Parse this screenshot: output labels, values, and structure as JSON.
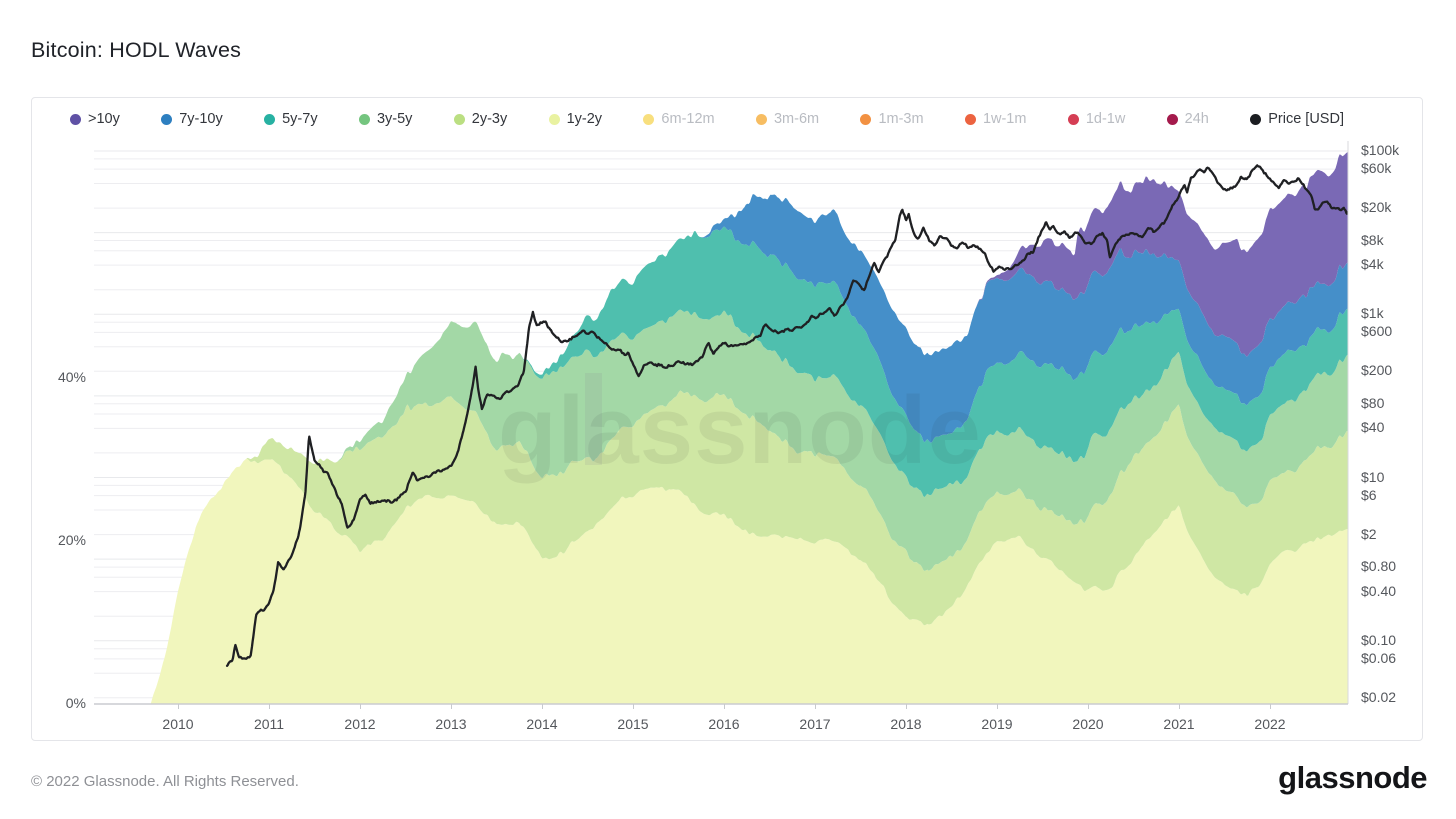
{
  "title": "Bitcoin: HODL Waves",
  "footer": {
    "copyright": "© 2022 Glassnode. All Rights Reserved.",
    "logo": "glassnode"
  },
  "watermark": "glassnode",
  "colors": {
    "price_line": "#1f2023",
    "gridline": "#ededf0",
    "axis_line": "#caccd0",
    "plot_right_border": "#d9dadd",
    "active_label": "#33363c",
    "muted_label": "#b9bcc2"
  },
  "legend": [
    {
      "label": ">10y",
      "color": "#5f51a5",
      "muted": false
    },
    {
      "label": "7y-10y",
      "color": "#2d7fc0",
      "muted": false
    },
    {
      "label": "5y-7y",
      "color": "#27b1a2",
      "muted": false
    },
    {
      "label": "3y-5y",
      "color": "#74c57f",
      "muted": false
    },
    {
      "label": "2y-3y",
      "color": "#bbdf82",
      "muted": false
    },
    {
      "label": "1y-2y",
      "color": "#e9f2a1",
      "muted": false
    },
    {
      "label": "6m-12m",
      "color": "#f8df7e",
      "muted": true
    },
    {
      "label": "3m-6m",
      "color": "#f7bd62",
      "muted": true
    },
    {
      "label": "1m-3m",
      "color": "#f29142",
      "muted": true
    },
    {
      "label": "1w-1m",
      "color": "#ec6340",
      "muted": true
    },
    {
      "label": "1d-1w",
      "color": "#d53e54",
      "muted": true
    },
    {
      "label": "24h",
      "color": "#a41a4c",
      "muted": true
    },
    {
      "label": "Price [USD]",
      "color": "#1b1d21",
      "muted": false
    }
  ],
  "chart_data": {
    "type": "area",
    "stacked": true,
    "title": "Bitcoin: HODL Waves",
    "left_axis": {
      "unit": "%",
      "ticks": [
        {
          "label": "0%",
          "value": 0
        },
        {
          "label": "20%",
          "value": 20
        },
        {
          "label": "40%",
          "value": 40
        }
      ]
    },
    "right_axis": {
      "unit": "USD",
      "scale": "log",
      "range": [
        0.02,
        100000
      ],
      "ticks": [
        {
          "label": "$100k",
          "value": 100000
        },
        {
          "label": "$60k",
          "value": 60000
        },
        {
          "label": "$20k",
          "value": 20000
        },
        {
          "label": "$8k",
          "value": 8000
        },
        {
          "label": "$4k",
          "value": 4000
        },
        {
          "label": "$1k",
          "value": 1000
        },
        {
          "label": "$600",
          "value": 600
        },
        {
          "label": "$200",
          "value": 200
        },
        {
          "label": "$80",
          "value": 80
        },
        {
          "label": "$40",
          "value": 40
        },
        {
          "label": "$10",
          "value": 10
        },
        {
          "label": "$6",
          "value": 6
        },
        {
          "label": "$2",
          "value": 2
        },
        {
          "label": "$0.80",
          "value": 0.8
        },
        {
          "label": "$0.40",
          "value": 0.4
        },
        {
          "label": "$0.10",
          "value": 0.1
        },
        {
          "label": "$0.06",
          "value": 0.06
        },
        {
          "label": "$0.02",
          "value": 0.02
        }
      ]
    },
    "x_axis": {
      "years": [
        2010,
        2011,
        2012,
        2013,
        2014,
        2015,
        2016,
        2017,
        2018,
        2019,
        2020,
        2021,
        2022
      ]
    },
    "x": [
      2009.7,
      2009.85,
      2010.0,
      2010.1,
      2010.25,
      2010.5,
      2010.75,
      2011.0,
      2011.25,
      2011.5,
      2011.75,
      2012.0,
      2012.25,
      2012.5,
      2012.75,
      2013.0,
      2013.25,
      2013.5,
      2013.75,
      2014.0,
      2014.25,
      2014.5,
      2014.75,
      2015.0,
      2015.25,
      2015.5,
      2015.75,
      2016.0,
      2016.25,
      2016.5,
      2016.75,
      2017.0,
      2017.25,
      2017.5,
      2017.75,
      2018.0,
      2018.25,
      2018.5,
      2018.75,
      2019.0,
      2019.25,
      2019.5,
      2019.75,
      2019.86,
      2019.88,
      2020.0,
      2020.25,
      2020.5,
      2020.75,
      2021.0,
      2021.25,
      2021.5,
      2021.75,
      2022.0,
      2022.25,
      2022.5,
      2022.75,
      2022.87
    ],
    "series": [
      {
        "name": "1y-2y",
        "color": "#f1f6bd",
        "values": [
          0,
          6,
          14,
          18,
          23,
          27.5,
          30,
          30,
          28,
          24,
          21,
          19,
          20,
          24,
          25.5,
          26,
          25,
          22,
          22,
          18,
          19,
          21,
          24,
          26,
          27,
          26,
          24,
          23,
          21,
          21,
          21,
          20,
          20,
          18,
          14,
          11,
          10,
          12,
          16,
          20,
          21,
          18,
          16,
          15.5,
          15.5,
          14,
          14,
          18,
          21,
          24,
          18,
          14,
          13,
          17,
          19,
          20,
          21,
          21.5
        ]
      },
      {
        "name": "2y-3y",
        "color": "#cfe7a4",
        "values": [
          0,
          0,
          0,
          0,
          0,
          0,
          0,
          2,
          4,
          6,
          9,
          13,
          13,
          12,
          11,
          12,
          11,
          9,
          10,
          10,
          10,
          9,
          8,
          9,
          10,
          12,
          14,
          15,
          14,
          13,
          11,
          10.5,
          10,
          9.5,
          8.5,
          8,
          6.5,
          6,
          6,
          6,
          6,
          6.1,
          7,
          7.5,
          7.5,
          9,
          11,
          12.5,
          12,
          12,
          12,
          12,
          10.5,
          10.3,
          10,
          10.5,
          11.5,
          12
        ]
      },
      {
        "name": "3y-5y",
        "color": "#a3d8a6",
        "values": [
          0,
          0,
          0,
          0,
          0,
          0,
          0,
          0,
          0,
          0,
          0,
          1,
          2,
          4,
          7,
          9,
          11,
          11,
          11,
          12,
          13,
          13,
          12,
          11,
          10,
          10,
          10,
          10,
          10,
          10,
          10,
          9.5,
          10,
          10,
          9.5,
          9,
          9,
          8.5,
          8,
          7.5,
          7.5,
          7.7,
          8,
          8,
          8,
          8.6,
          8,
          7,
          6.5,
          6.3,
          6.3,
          6.4,
          7,
          8.1,
          8.5,
          9,
          9,
          9
        ]
      },
      {
        "name": "5y-7y",
        "color": "#4fbfae",
        "values": [
          0,
          0,
          0,
          0,
          0,
          0,
          0,
          0,
          0,
          0,
          0,
          0,
          0,
          0,
          0,
          0,
          0,
          0,
          0,
          0.5,
          2,
          4,
          6,
          7,
          8,
          9,
          10,
          10.5,
          11,
          11.5,
          11.5,
          11.5,
          11,
          10,
          8.5,
          7.5,
          6.2,
          6.5,
          7.5,
          8.5,
          9.5,
          10.3,
          10.5,
          10.5,
          10.5,
          10.4,
          10,
          9,
          7.5,
          5.6,
          5.5,
          5.5,
          5.8,
          6.2,
          6,
          5.8,
          5.5,
          5.4
        ]
      },
      {
        "name": "7y-10y",
        "color": "#458fc9",
        "values": [
          0,
          0,
          0,
          0,
          0,
          0,
          0,
          0,
          0,
          0,
          0,
          0,
          0,
          0,
          0,
          0,
          0,
          0,
          0,
          0,
          0,
          0,
          0,
          0,
          0,
          0,
          0,
          1,
          5,
          7.5,
          8,
          8,
          8.5,
          9,
          10,
          10.5,
          10.7,
          10.5,
          10.3,
          10.2,
          10.2,
          10.2,
          10,
          10,
          10,
          9.7,
          9.5,
          9,
          8,
          6.3,
          6.2,
          6.2,
          6.1,
          6.1,
          6,
          5.8,
          5.6,
          5.5
        ]
      },
      {
        "name": ">10y",
        "color": "#7a69b5",
        "values": [
          0,
          0,
          0,
          0,
          0,
          0,
          0,
          0,
          0,
          0,
          0,
          0,
          0,
          0,
          0,
          0,
          0,
          0,
          0,
          0,
          0,
          0,
          0,
          0,
          0,
          0,
          0,
          0,
          0,
          0,
          0,
          0,
          0,
          0,
          0,
          0,
          0,
          0,
          0,
          0.3,
          2.5,
          4.9,
          5.5,
          5.6,
          7.6,
          7.3,
          7.8,
          8.5,
          8.8,
          8.8,
          10,
          11.6,
          13,
          13.1,
          13.4,
          13.5,
          13.5,
          13.5
        ]
      }
    ],
    "price": {
      "name": "Price [USD]",
      "color": "#1f2023",
      "scale": "log",
      "x": [
        2010.54,
        2010.6,
        2010.63,
        2010.67,
        2010.74,
        2010.8,
        2010.86,
        2010.93,
        2011.0,
        2011.05,
        2011.1,
        2011.16,
        2011.24,
        2011.32,
        2011.4,
        2011.44,
        2011.5,
        2011.56,
        2011.64,
        2011.72,
        2011.8,
        2011.86,
        2011.93,
        2012.0,
        2012.06,
        2012.12,
        2012.2,
        2012.3,
        2012.4,
        2012.5,
        2012.58,
        2012.63,
        2012.72,
        2012.8,
        2012.9,
        2013.0,
        2013.08,
        2013.16,
        2013.24,
        2013.27,
        2013.3,
        2013.34,
        2013.4,
        2013.46,
        2013.52,
        2013.58,
        2013.66,
        2013.74,
        2013.8,
        2013.86,
        2013.9,
        2013.94,
        2013.99,
        2014.04,
        2014.09,
        2014.15,
        2014.21,
        2014.3,
        2014.4,
        2014.5,
        2014.58,
        2014.66,
        2014.75,
        2014.85,
        2014.95,
        2015.02,
        2015.06,
        2015.12,
        2015.2,
        2015.3,
        2015.4,
        2015.5,
        2015.58,
        2015.66,
        2015.76,
        2015.83,
        2015.88,
        2015.95,
        2016.02,
        2016.1,
        2016.18,
        2016.28,
        2016.4,
        2016.46,
        2016.52,
        2016.6,
        2016.7,
        2016.8,
        2016.9,
        2016.97,
        2017.03,
        2017.1,
        2017.16,
        2017.21,
        2017.28,
        2017.35,
        2017.42,
        2017.48,
        2017.54,
        2017.6,
        2017.65,
        2017.7,
        2017.76,
        2017.82,
        2017.88,
        2017.93,
        2017.96,
        2018.0,
        2018.03,
        2018.08,
        2018.13,
        2018.19,
        2018.26,
        2018.31,
        2018.37,
        2018.44,
        2018.5,
        2018.56,
        2018.62,
        2018.68,
        2018.75,
        2018.82,
        2018.87,
        2018.91,
        2018.96,
        2019.02,
        2019.09,
        2019.16,
        2019.24,
        2019.33,
        2019.4,
        2019.45,
        2019.5,
        2019.54,
        2019.58,
        2019.62,
        2019.68,
        2019.74,
        2019.8,
        2019.86,
        2019.92,
        2019.98,
        2020.04,
        2020.1,
        2020.16,
        2020.21,
        2020.24,
        2020.3,
        2020.36,
        2020.42,
        2020.48,
        2020.54,
        2020.6,
        2020.66,
        2020.72,
        2020.78,
        2020.84,
        2020.9,
        2020.95,
        2021.0,
        2021.03,
        2021.06,
        2021.09,
        2021.13,
        2021.18,
        2021.23,
        2021.27,
        2021.31,
        2021.36,
        2021.4,
        2021.44,
        2021.48,
        2021.53,
        2021.58,
        2021.63,
        2021.68,
        2021.72,
        2021.77,
        2021.82,
        2021.86,
        2021.91,
        2021.96,
        2022.0,
        2022.05,
        2022.1,
        2022.15,
        2022.2,
        2022.26,
        2022.31,
        2022.36,
        2022.41,
        2022.45,
        2022.49,
        2022.53,
        2022.58,
        2022.63,
        2022.68,
        2022.73,
        2022.78,
        2022.81,
        2022.84,
        2022.87
      ],
      "values": [
        0.05,
        0.062,
        0.09,
        0.063,
        0.06,
        0.065,
        0.2,
        0.24,
        0.3,
        0.42,
        0.95,
        0.75,
        1.1,
        1.8,
        6.5,
        31,
        16,
        13.5,
        11,
        7.5,
        4.8,
        2.4,
        3.1,
        5.3,
        6.2,
        4.9,
        5.0,
        5.1,
        5.3,
        6.6,
        11.2,
        9.1,
        10.4,
        11.2,
        12.5,
        13.5,
        21,
        47,
        130,
        230,
        120,
        70,
        105,
        98,
        92,
        108,
        115,
        135,
        210,
        700,
        1130,
        720,
        810,
        850,
        630,
        570,
        450,
        505,
        585,
        615,
        590,
        480,
        385,
        355,
        320,
        230,
        175,
        240,
        255,
        237,
        225,
        262,
        235,
        258,
        292,
        450,
        345,
        415,
        435,
        398,
        420,
        450,
        580,
        740,
        655,
        590,
        630,
        680,
        728,
        960,
        890,
        1080,
        1210,
        950,
        1250,
        1550,
        2600,
        2450,
        1950,
        2900,
        4450,
        3350,
        4400,
        6100,
        8100,
        16500,
        19400,
        13800,
        16800,
        10500,
        8300,
        11100,
        8200,
        6900,
        9300,
        8450,
        7350,
        6300,
        7500,
        6600,
        7200,
        6400,
        5600,
        4250,
        3400,
        3900,
        3620,
        3720,
        4100,
        5350,
        5700,
        8150,
        10900,
        12900,
        10700,
        11800,
        9800,
        10350,
        8300,
        9750,
        9200,
        7250,
        7400,
        8850,
        9900,
        8300,
        4950,
        6850,
        8900,
        9400,
        9250,
        9650,
        9150,
        11550,
        10450,
        11900,
        13850,
        18600,
        23200,
        29100,
        33500,
        38200,
        31600,
        48100,
        52300,
        58300,
        54700,
        63200,
        53500,
        49300,
        37200,
        34600,
        31600,
        35300,
        39600,
        47300,
        43700,
        49200,
        61700,
        67200,
        57600,
        49100,
        47300,
        38600,
        36700,
        44300,
        38700,
        40200,
        46100,
        39200,
        31600,
        29900,
        20100,
        19300,
        22600,
        23900,
        20200,
        19500,
        18900,
        20400,
        16900,
        17200
      ]
    }
  }
}
